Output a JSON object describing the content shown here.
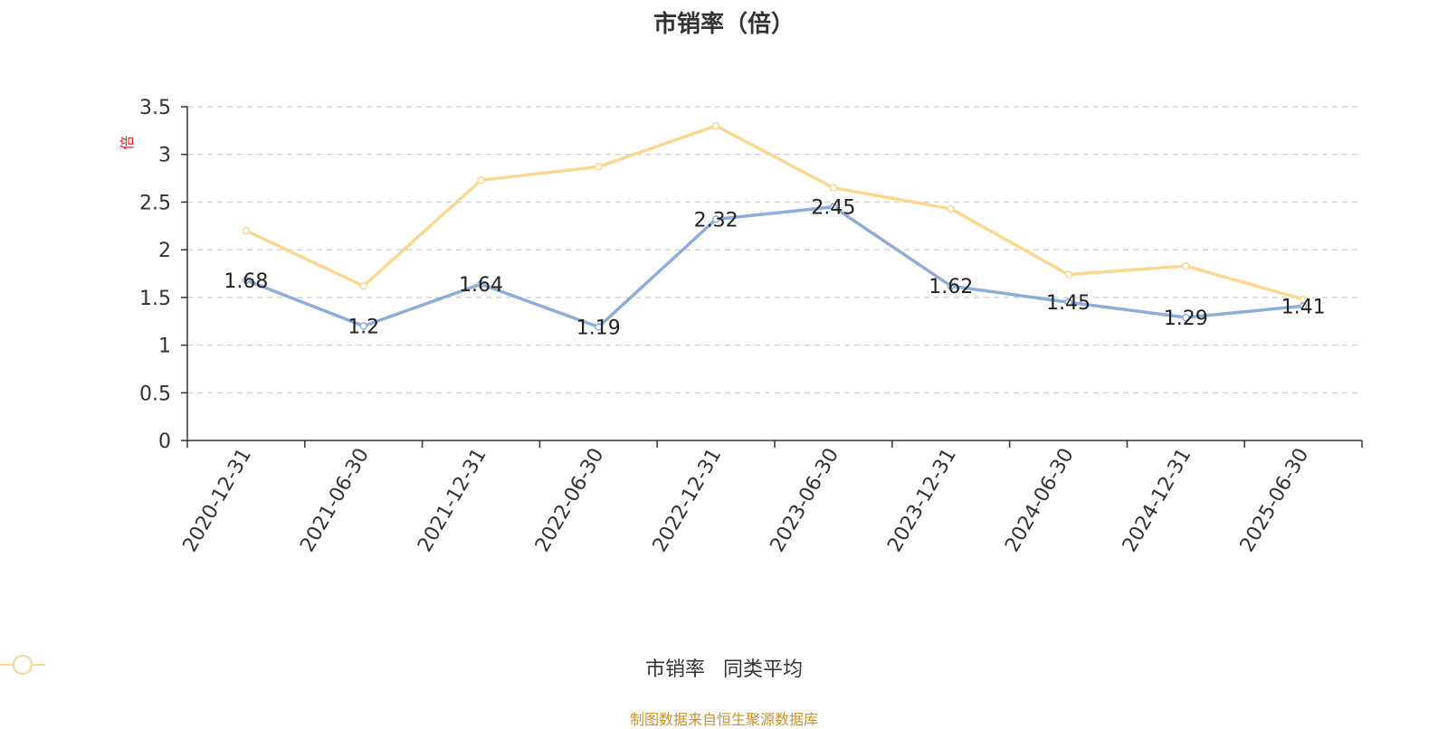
{
  "title": "市销率（倍）",
  "source": "制图数据来自恒生聚源数据库",
  "colors": {
    "series1": "#8eadd9",
    "series2": "#fad892",
    "unit": "#e02020",
    "source": "#c8932c"
  },
  "chart_data": {
    "type": "line",
    "title": "市销率（倍）",
    "ylabel": "倍",
    "ylim": [
      0,
      3.5
    ],
    "yticks": [
      "0",
      "0.5",
      "1",
      "1.5",
      "2",
      "2.5",
      "3",
      "3.5"
    ],
    "grid": true,
    "legend_position": "bottom",
    "categories": [
      "2020-12-31",
      "2021-06-30",
      "2021-12-31",
      "2022-06-30",
      "2022-12-31",
      "2023-06-30",
      "2023-12-31",
      "2024-06-30",
      "2024-12-31",
      "2025-06-30"
    ],
    "series": [
      {
        "name": "市销率",
        "values": [
          1.68,
          1.2,
          1.64,
          1.19,
          2.32,
          2.45,
          1.62,
          1.45,
          1.29,
          1.41
        ],
        "labels": [
          "1.68",
          "1.2",
          "1.64",
          "1.19",
          "2.32",
          "2.45",
          "1.62",
          "1.45",
          "1.29",
          "1.41"
        ]
      },
      {
        "name": "同类平均",
        "values": [
          2.2,
          1.62,
          2.73,
          2.87,
          3.3,
          2.65,
          2.43,
          1.74,
          1.83,
          1.48
        ]
      }
    ]
  }
}
